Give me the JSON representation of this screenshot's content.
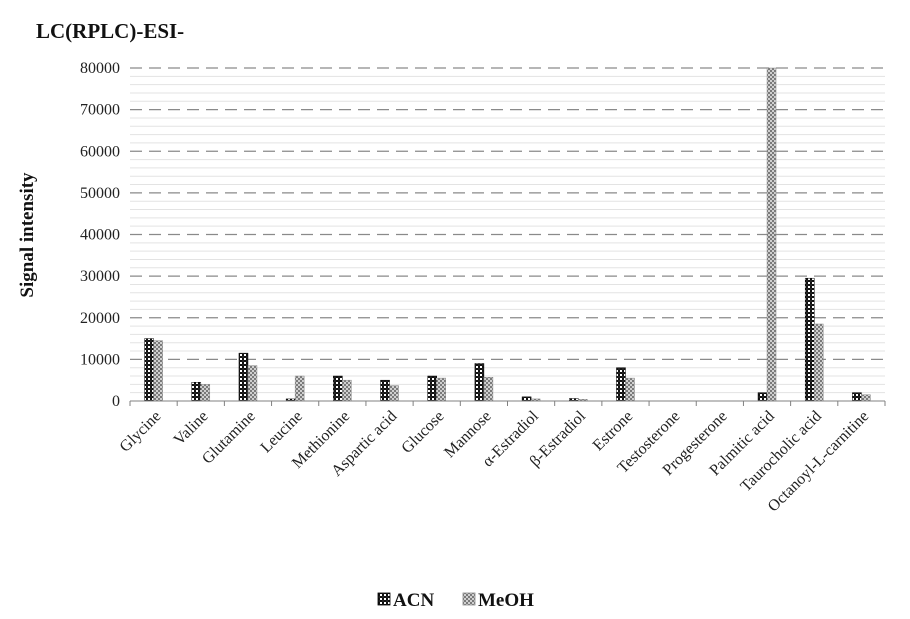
{
  "chart_data": {
    "type": "bar",
    "title": "LC(RPLC)-ESI-",
    "ylabel": "Signal intensity",
    "xlabel": "",
    "ylim": [
      0,
      80000
    ],
    "yticks": [
      0,
      10000,
      20000,
      30000,
      40000,
      50000,
      60000,
      70000,
      80000
    ],
    "grid": "dashed horizontal",
    "legend_position": "bottom",
    "categories": [
      "Glycine",
      "Valine",
      "Glutamine",
      "Leucine",
      "Methionine",
      "Aspartic acid",
      "Glucose",
      "Mannose",
      "α-Estradiol",
      "β-Estradiol",
      "Estrone",
      "Testosterone",
      "Progesterone",
      "Palmitic acid",
      "Taurocholic acid",
      "Octanoyl-L-carnitine"
    ],
    "series": [
      {
        "name": "ACN",
        "color": "#1a1a1a",
        "pattern": "checker-dark",
        "values": [
          15000,
          4500,
          11500,
          500,
          6000,
          5000,
          6000,
          9000,
          1000,
          600,
          8000,
          0,
          0,
          2000,
          29500,
          2000
        ]
      },
      {
        "name": "MeOH",
        "color": "#9a9a9a",
        "pattern": "checker-light",
        "values": [
          14500,
          4000,
          8500,
          6000,
          5000,
          3700,
          5500,
          5700,
          500,
          400,
          5500,
          0,
          0,
          80000,
          18500,
          1500
        ]
      }
    ]
  }
}
